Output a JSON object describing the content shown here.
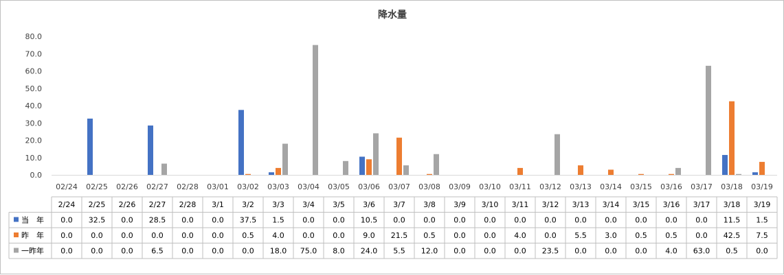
{
  "chart_data": {
    "type": "bar",
    "title": "降水量",
    "xlabel": "",
    "ylabel": "",
    "ylim": [
      0,
      80
    ],
    "yticks": [
      "0.0",
      "10.0",
      "20.0",
      "30.0",
      "40.0",
      "50.0",
      "60.0",
      "70.0",
      "80.0"
    ],
    "grid": false,
    "legend": "in-table",
    "categories": [
      "02/24",
      "02/25",
      "02/26",
      "02/27",
      "02/28",
      "03/01",
      "03/02",
      "03/03",
      "03/04",
      "03/05",
      "03/06",
      "03/07",
      "03/08",
      "03/09",
      "03/10",
      "03/11",
      "03/12",
      "03/13",
      "03/14",
      "03/15",
      "03/16",
      "03/17",
      "03/18",
      "03/19"
    ],
    "table_header": [
      "2/24",
      "2/25",
      "2/26",
      "2/27",
      "2/28",
      "3/1",
      "3/2",
      "3/3",
      "3/4",
      "3/5",
      "3/6",
      "3/7",
      "3/8",
      "3/9",
      "3/10",
      "3/11",
      "3/12",
      "3/13",
      "3/14",
      "3/15",
      "3/16",
      "3/17",
      "3/18",
      "3/19"
    ],
    "series": [
      {
        "name": "当　年",
        "color": "#4472c4",
        "values": [
          0.0,
          32.5,
          0.0,
          28.5,
          0.0,
          0.0,
          37.5,
          1.5,
          0.0,
          0.0,
          10.5,
          0.0,
          0.0,
          0.0,
          0.0,
          0.0,
          0.0,
          0.0,
          0.0,
          0.0,
          0.0,
          0.0,
          11.5,
          1.5
        ],
        "labels": [
          "0.0",
          "32.5",
          "0.0",
          "28.5",
          "0.0",
          "0.0",
          "37.5",
          "1.5",
          "0.0",
          "0.0",
          "10.5",
          "0.0",
          "0.0",
          "0.0",
          "0.0",
          "0.0",
          "0.0",
          "0.0",
          "0.0",
          "0.0",
          "0.0",
          "0.0",
          "11.5",
          "1.5"
        ]
      },
      {
        "name": "昨　年",
        "color": "#ed7d31",
        "values": [
          0.0,
          0.0,
          0.0,
          0.0,
          0.0,
          0.0,
          0.5,
          4.0,
          0.0,
          0.0,
          9.0,
          21.5,
          0.5,
          0.0,
          0.0,
          4.0,
          0.0,
          5.5,
          3.0,
          0.5,
          0.5,
          0.0,
          42.5,
          7.5
        ],
        "labels": [
          "0.0",
          "0.0",
          "0.0",
          "0.0",
          "0.0",
          "0.0",
          "0.5",
          "4.0",
          "0.0",
          "0.0",
          "9.0",
          "21.5",
          "0.5",
          "0.0",
          "0.0",
          "4.0",
          "0.0",
          "5.5",
          "3.0",
          "0.5",
          "0.5",
          "0.0",
          "42.5",
          "7.5"
        ]
      },
      {
        "name": "一昨年",
        "color": "#a5a5a5",
        "values": [
          0.0,
          0.0,
          0.0,
          6.5,
          0.0,
          0.0,
          0.0,
          18.0,
          75.0,
          8.0,
          24.0,
          5.5,
          12.0,
          0.0,
          0.0,
          0.0,
          23.5,
          0.0,
          0.0,
          0.0,
          4.0,
          63.0,
          0.5,
          0.0
        ],
        "labels": [
          "0.0",
          "0.0",
          "0.0",
          "6.5",
          "0.0",
          "0.0",
          "0.0",
          "18.0",
          "75.0",
          "8.0",
          "24.0",
          "5.5",
          "12.0",
          "0.0",
          "0.0",
          "0.0",
          "23.5",
          "0.0",
          "0.0",
          "0.0",
          "4.0",
          "63.0",
          "0.5",
          "0.0"
        ]
      }
    ]
  }
}
